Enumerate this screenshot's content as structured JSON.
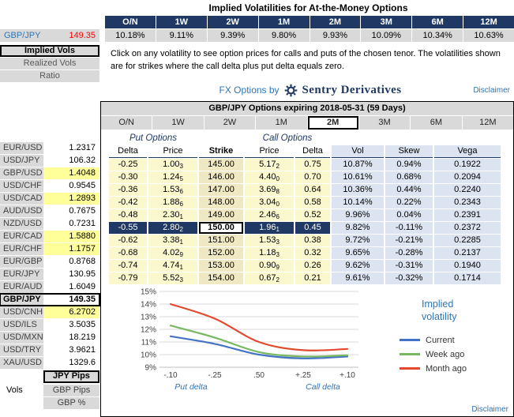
{
  "top": {
    "title": "Implied Volatilities for At-the-Money Options",
    "tenors": [
      "O/N",
      "1W",
      "2W",
      "1M",
      "2M",
      "3M",
      "6M",
      "12M"
    ],
    "atm_vols": [
      "10.18%",
      "9.11%",
      "9.39%",
      "9.80%",
      "9.93%",
      "10.09%",
      "10.34%",
      "10.63%"
    ],
    "instructions": "Click on any volatility to see option prices for calls and puts of the chosen tenor. The volatilities shown are for strikes where the call delta plus put delta equals zero.",
    "brand_prefix": "FX Options by",
    "brand_name": "Sentry Derivatives",
    "disclaimer": "Disclaimer"
  },
  "left_panel": {
    "pair": "GBP/JPY",
    "price": "149.35",
    "buttons": [
      {
        "label": "Implied Vols",
        "selected": true
      },
      {
        "label": "Realized Vols",
        "selected": false
      },
      {
        "label": "Ratio",
        "selected": false
      }
    ]
  },
  "sidebar": {
    "pairs": [
      {
        "pair": "EUR/USD",
        "value": "1.2317",
        "highlight": false,
        "selected": false
      },
      {
        "pair": "USD/JPY",
        "value": "106.32",
        "highlight": false,
        "selected": false
      },
      {
        "pair": "GBP/USD",
        "value": "1.4048",
        "highlight": true,
        "selected": false
      },
      {
        "pair": "USD/CHF",
        "value": "0.9545",
        "highlight": false,
        "selected": false
      },
      {
        "pair": "USD/CAD",
        "value": "1.2893",
        "highlight": true,
        "selected": false
      },
      {
        "pair": "AUD/USD",
        "value": "0.7675",
        "highlight": false,
        "selected": false
      },
      {
        "pair": "NZD/USD",
        "value": "0.7231",
        "highlight": false,
        "selected": false
      },
      {
        "pair": "EUR/CAD",
        "value": "1.5880",
        "highlight": true,
        "selected": false
      },
      {
        "pair": "EUR/CHF",
        "value": "1.1757",
        "highlight": true,
        "selected": false
      },
      {
        "pair": "EUR/GBP",
        "value": "0.8768",
        "highlight": false,
        "selected": false
      },
      {
        "pair": "EUR/JPY",
        "value": "130.95",
        "highlight": false,
        "selected": false
      },
      {
        "pair": "EUR/AUD",
        "value": "1.6049",
        "highlight": false,
        "selected": false
      },
      {
        "pair": "GBP/JPY",
        "value": "149.35",
        "highlight": false,
        "selected": true
      },
      {
        "pair": "USD/CNH",
        "value": "6.2702",
        "highlight": true,
        "selected": false
      },
      {
        "pair": "USD/ILS",
        "value": "3.5035",
        "highlight": false,
        "selected": false
      },
      {
        "pair": "USD/MXN",
        "value": "18.219",
        "highlight": false,
        "selected": false
      },
      {
        "pair": "USD/TRY",
        "value": "3.9621",
        "highlight": false,
        "selected": false
      },
      {
        "pair": "XAU/USD",
        "value": "1329.6",
        "highlight": false,
        "selected": false
      }
    ],
    "pips_button": "JPY Pips",
    "vols_label": "Vols",
    "bottom_buttons": [
      "GBP Pips",
      "GBP %"
    ]
  },
  "main": {
    "header": "GBP/JPY Options expiring 2018-05-31 (59 Days)",
    "tabs": [
      {
        "label": "O/N",
        "selected": false
      },
      {
        "label": "1W",
        "selected": false
      },
      {
        "label": "2W",
        "selected": false
      },
      {
        "label": "1M",
        "selected": false
      },
      {
        "label": "2M",
        "selected": true
      },
      {
        "label": "3M",
        "selected": false
      },
      {
        "label": "6M",
        "selected": false
      },
      {
        "label": "12M",
        "selected": false
      }
    ],
    "disclaimer": "Disclaimer"
  },
  "options_table": {
    "put_header": "Put Options",
    "call_header": "Call Options",
    "columns": [
      "Delta",
      "Price",
      "Strike",
      "Price",
      "Delta",
      "Vol",
      "Skew",
      "Vega"
    ],
    "rows": [
      {
        "put_delta": "-0.25",
        "put_price": "1.00",
        "put_price_sub": "3",
        "strike": "145.00",
        "call_price": "5.17",
        "call_price_sub": "2",
        "call_delta": "0.75",
        "vol": "10.87%",
        "skew": "0.94%",
        "vega": "0.1922",
        "selected": false
      },
      {
        "put_delta": "-0.30",
        "put_price": "1.24",
        "put_price_sub": "5",
        "strike": "146.00",
        "call_price": "4.40",
        "call_price_sub": "0",
        "call_delta": "0.70",
        "vol": "10.61%",
        "skew": "0.68%",
        "vega": "0.2094",
        "selected": false
      },
      {
        "put_delta": "-0.36",
        "put_price": "1.53",
        "put_price_sub": "6",
        "strike": "147.00",
        "call_price": "3.69",
        "call_price_sub": "8",
        "call_delta": "0.64",
        "vol": "10.36%",
        "skew": "0.44%",
        "vega": "0.2240",
        "selected": false
      },
      {
        "put_delta": "-0.42",
        "put_price": "1.88",
        "put_price_sub": "6",
        "strike": "148.00",
        "call_price": "3.04",
        "call_price_sub": "0",
        "call_delta": "0.58",
        "vol": "10.14%",
        "skew": "0.22%",
        "vega": "0.2343",
        "selected": false
      },
      {
        "put_delta": "-0.48",
        "put_price": "2.30",
        "put_price_sub": "1",
        "strike": "149.00",
        "call_price": "2.46",
        "call_price_sub": "6",
        "call_delta": "0.52",
        "vol": "9.96%",
        "skew": "0.04%",
        "vega": "0.2391",
        "selected": false
      },
      {
        "put_delta": "-0.55",
        "put_price": "2.80",
        "put_price_sub": "2",
        "strike": "150.00",
        "call_price": "1.96",
        "call_price_sub": "1",
        "call_delta": "0.45",
        "vol": "9.82%",
        "skew": "-0.11%",
        "vega": "0.2372",
        "selected": true
      },
      {
        "put_delta": "-0.62",
        "put_price": "3.38",
        "put_price_sub": "1",
        "strike": "151.00",
        "call_price": "1.53",
        "call_price_sub": "3",
        "call_delta": "0.38",
        "vol": "9.72%",
        "skew": "-0.21%",
        "vega": "0.2285",
        "selected": false
      },
      {
        "put_delta": "-0.68",
        "put_price": "4.02",
        "put_price_sub": "9",
        "strike": "152.00",
        "call_price": "1.18",
        "call_price_sub": "3",
        "call_delta": "0.32",
        "vol": "9.65%",
        "skew": "-0.28%",
        "vega": "0.2137",
        "selected": false
      },
      {
        "put_delta": "-0.74",
        "put_price": "4.74",
        "put_price_sub": "1",
        "strike": "153.00",
        "call_price": "0.90",
        "call_price_sub": "9",
        "call_delta": "0.26",
        "vol": "9.62%",
        "skew": "-0.31%",
        "vega": "0.1940",
        "selected": false
      },
      {
        "put_delta": "-0.79",
        "put_price": "5.52",
        "put_price_sub": "3",
        "strike": "154.00",
        "call_price": "0.67",
        "call_price_sub": "2",
        "call_delta": "0.21",
        "vol": "9.61%",
        "skew": "-0.32%",
        "vega": "0.1714",
        "selected": false
      }
    ]
  },
  "chart_data": {
    "type": "line",
    "x_tick_labels": [
      "-.10",
      "-.25",
      ".50",
      "+.25",
      "+.10"
    ],
    "xlabel_left": "Put delta",
    "xlabel_right": "Call delta",
    "ylim": [
      9,
      15
    ],
    "y_tick_suffix": "%",
    "grid": true,
    "legend_position": "right",
    "legend_title": "Implied volatility",
    "series": [
      {
        "name": "Current",
        "color": "#4472C4",
        "values": [
          11.45,
          10.85,
          10.0,
          9.7,
          9.85
        ]
      },
      {
        "name": "Week ago",
        "color": "#79B861",
        "values": [
          12.3,
          11.35,
          10.2,
          9.85,
          9.95
        ]
      },
      {
        "name": "Month ago",
        "color": "#E2492F",
        "values": [
          14.0,
          12.85,
          11.0,
          10.35,
          10.45
        ]
      }
    ]
  }
}
